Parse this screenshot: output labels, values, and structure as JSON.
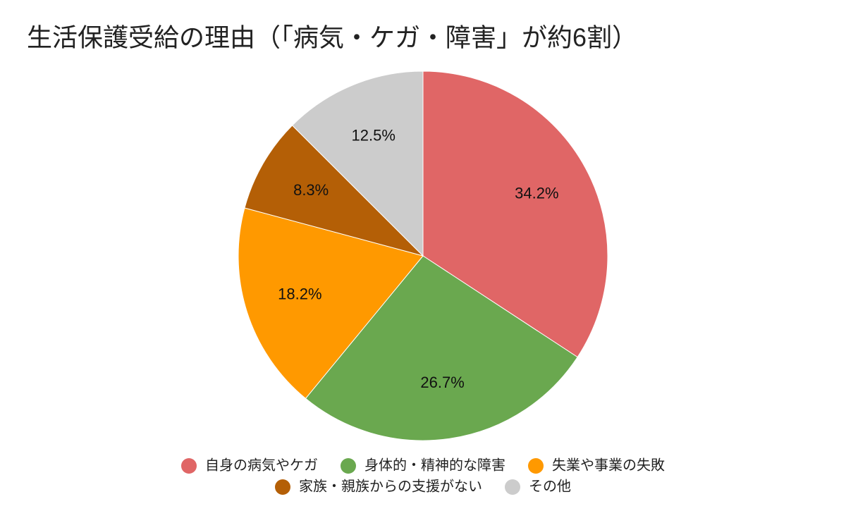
{
  "chart_data": {
    "type": "pie",
    "title": "生活保護受給の理由（「病気・ケガ・障害」が約6割）",
    "categories": [
      "自身の病気やケガ",
      "身体的・精神的な障害",
      "失業や事業の失敗",
      "家族・親族からの支援がない",
      "その他"
    ],
    "values": [
      34.2,
      26.7,
      18.2,
      8.3,
      12.5
    ],
    "value_labels": [
      "34.2%",
      "26.7%",
      "18.2%",
      "8.3%",
      "12.5%"
    ],
    "colors": [
      "#e06666",
      "#6aa84f",
      "#ff9900",
      "#b45f06",
      "#cccccc"
    ],
    "legend": "bottom"
  }
}
